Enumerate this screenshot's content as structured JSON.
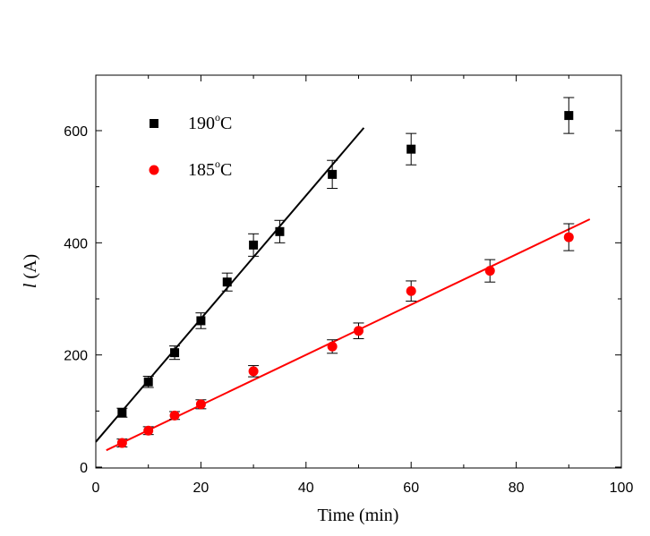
{
  "chart_data": {
    "type": "scatter",
    "xlabel": "Time (min)",
    "ylabel_symbol": "l",
    "ylabel_unit": " (A)",
    "xlim": [
      0,
      100
    ],
    "ylim": [
      0,
      700
    ],
    "xticks": [
      0,
      20,
      40,
      60,
      80,
      100
    ],
    "yticks": [
      0,
      200,
      400,
      600
    ],
    "grid": false,
    "legend_position": "top-left",
    "series": [
      {
        "name": "190°C",
        "legend_main": "190",
        "legend_sup": "o",
        "legend_unit": "C",
        "marker": "square",
        "color": "#000000",
        "x": [
          5,
          10,
          15,
          20,
          25,
          30,
          35,
          45,
          60,
          90
        ],
        "y": [
          97,
          152,
          204,
          261,
          330,
          396,
          420,
          522,
          567,
          627
        ],
        "err": [
          8,
          10,
          12,
          14,
          16,
          20,
          20,
          25,
          28,
          32
        ],
        "fit": {
          "x": [
            0,
            51
          ],
          "y": [
            45,
            605
          ]
        }
      },
      {
        "name": "185°C",
        "legend_main": "185",
        "legend_sup": "o",
        "legend_unit": "C",
        "marker": "circle",
        "color": "#ff0000",
        "x": [
          5,
          10,
          15,
          20,
          30,
          45,
          50,
          60,
          75,
          90
        ],
        "y": [
          43,
          65,
          92,
          112,
          171,
          215,
          243,
          314,
          350,
          410
        ],
        "err": [
          7,
          7,
          7,
          8,
          10,
          12,
          14,
          18,
          20,
          24
        ],
        "fit": {
          "x": [
            2,
            94
          ],
          "y": [
            30,
            442
          ]
        }
      }
    ]
  }
}
